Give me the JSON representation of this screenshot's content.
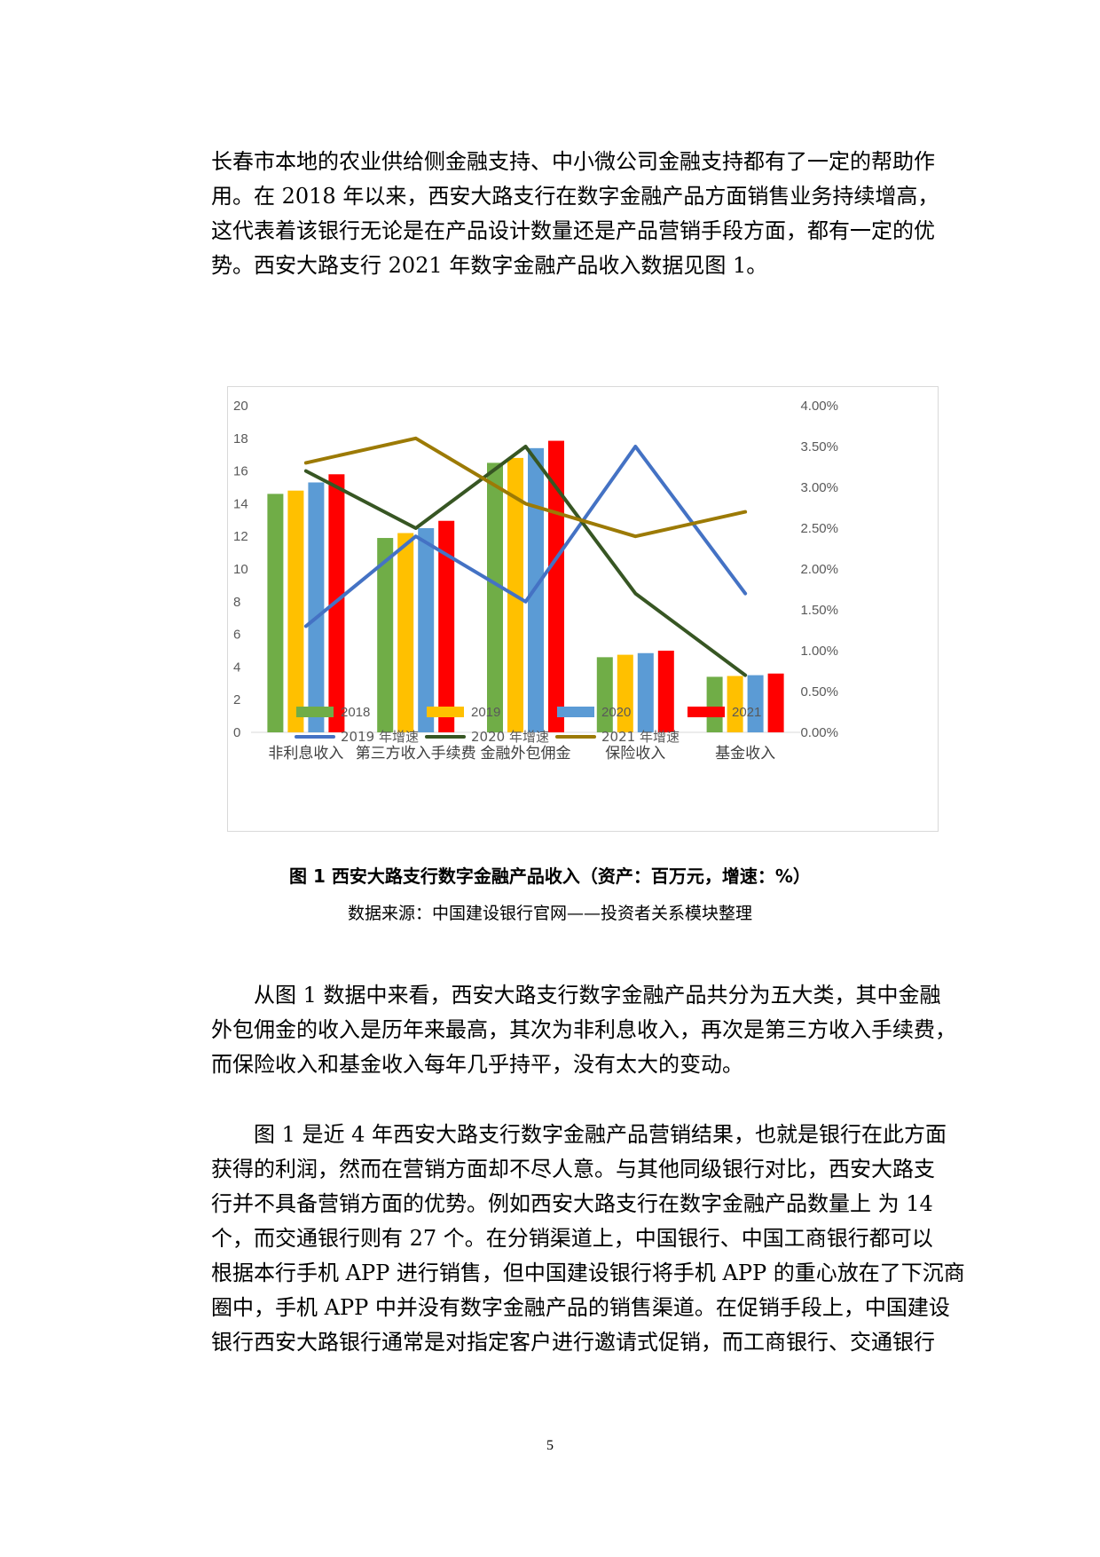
{
  "paragraphs": {
    "p1": [
      "长春市本地的农业供给侧金融支持、中小微公司金融支持都有了一定的帮助作",
      "用。在 2018 年以来，西安大路支行在数字金融产品方面销售业务持续增高，",
      "这代表着该银行无论是在产品设计数量还是产品营销手段方面，都有一定的优",
      "势。西安大路支行 2021 年数字金融产品收入数据见图 1。"
    ],
    "p2": [
      "从图 1 数据中来看，西安大路支行数字金融产品共分为五大类，其中金融",
      "外包佣金的收入是历年来最高，其次为非利息收入，再次是第三方收入手续费，",
      "而保险收入和基金收入每年几乎持平，没有太大的变动。"
    ],
    "p3": [
      "图 1 是近 4 年西安大路支行数字金融产品营销结果，也就是银行在此方面",
      "获得的利润，然而在营销方面却不尽人意。与其他同级银行对比，西安大路支",
      "行并不具备营销方面的优势。例如西安大路支行在数字金融产品数量上 为 14",
      "个，而交通银行则有 27 个。在分销渠道上，中国银行、中国工商银行都可以",
      "根据本行手机 APP 进行销售，但中国建设银行将手机 APP 的重心放在了下沉商",
      "圈中，手机 APP 中并没有数字金融产品的销售渠道。在促销手段上，中国建设",
      "银行西安大路银行通常是对指定客户进行邀请式促销，而工商银行、交通银行"
    ]
  },
  "figure": {
    "caption": "图 1  西安大路支行数字金融产品收入（资产：百万元，增速：%）",
    "source": "数据来源：中国建设银行官网——投资者关系模块整理"
  },
  "page_number": "5",
  "chart_data": {
    "type": "bar",
    "categories": [
      "非利息收入",
      "第三方收入手续费",
      "金融外包佣金",
      "保险收入",
      "基金收入"
    ],
    "series": [
      {
        "name": "2018",
        "type": "bar",
        "axis": "left",
        "color": "#70ad47",
        "values": [
          14.6,
          11.9,
          16.5,
          4.6,
          3.4
        ]
      },
      {
        "name": "2019",
        "type": "bar",
        "axis": "left",
        "color": "#ffc000",
        "values": [
          14.8,
          12.2,
          16.8,
          4.75,
          3.45
        ]
      },
      {
        "name": "2020",
        "type": "bar",
        "axis": "left",
        "color": "#5b9bd5",
        "values": [
          15.3,
          12.5,
          17.4,
          4.85,
          3.5
        ]
      },
      {
        "name": "2021",
        "type": "bar",
        "axis": "left",
        "color": "#ff0000",
        "values": [
          15.8,
          12.95,
          17.85,
          5.0,
          3.6
        ]
      },
      {
        "name": "2019 年增速",
        "type": "line",
        "axis": "right",
        "color": "#4472c4",
        "values": [
          1.3,
          2.4,
          1.6,
          3.5,
          1.7
        ]
      },
      {
        "name": "2020 年增速",
        "type": "line",
        "axis": "right",
        "color": "#375623",
        "values": [
          3.2,
          2.5,
          3.5,
          1.7,
          0.7
        ]
      },
      {
        "name": "2021 年增速",
        "type": "line",
        "axis": "right",
        "color": "#9c7a05",
        "values": [
          3.3,
          3.6,
          2.8,
          2.4,
          2.7
        ]
      }
    ],
    "y_left": {
      "min": 0,
      "max": 20,
      "step": 2,
      "ticks": [
        "0",
        "2",
        "4",
        "6",
        "8",
        "10",
        "12",
        "14",
        "16",
        "18",
        "20"
      ]
    },
    "y_right": {
      "min": 0,
      "max": 4,
      "step": 0.5,
      "ticks": [
        "0.00%",
        "0.50%",
        "1.00%",
        "1.50%",
        "2.00%",
        "2.50%",
        "3.00%",
        "3.50%",
        "4.00%"
      ]
    },
    "grid": false,
    "legend_position": "bottom"
  }
}
